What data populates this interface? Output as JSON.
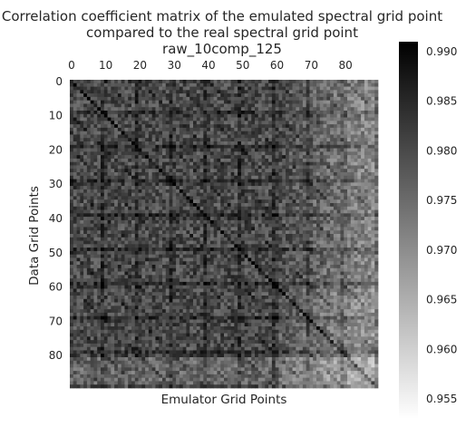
{
  "chart_data": {
    "type": "heatmap",
    "title_lines": [
      "Correlation coefficient matrix of the emulated spectral grid point",
      "compared to the real spectral grid point",
      "raw_10comp_125"
    ],
    "xlabel": "Emulator Grid Points",
    "ylabel": "Data Grid Points",
    "x_ticks": [
      0,
      10,
      20,
      30,
      40,
      50,
      60,
      70,
      80
    ],
    "y_ticks": [
      0,
      10,
      20,
      30,
      40,
      50,
      60,
      70,
      80
    ],
    "x_tick_position": "top",
    "grid_size": 90,
    "block_size": 10,
    "value_range": [
      0.953,
      0.991
    ],
    "colorbar": {
      "ticks": [
        0.99,
        0.985,
        0.98,
        0.975,
        0.97,
        0.965,
        0.96,
        0.955
      ],
      "tick_labels": [
        "0.990",
        "0.985",
        "0.980",
        "0.975",
        "0.970",
        "0.965",
        "0.960",
        "0.955"
      ],
      "colormap": "gray_r"
    },
    "pattern": "block-periodic correlation matrix, strong diagonal, brighter near bottom-right and far right columns"
  }
}
